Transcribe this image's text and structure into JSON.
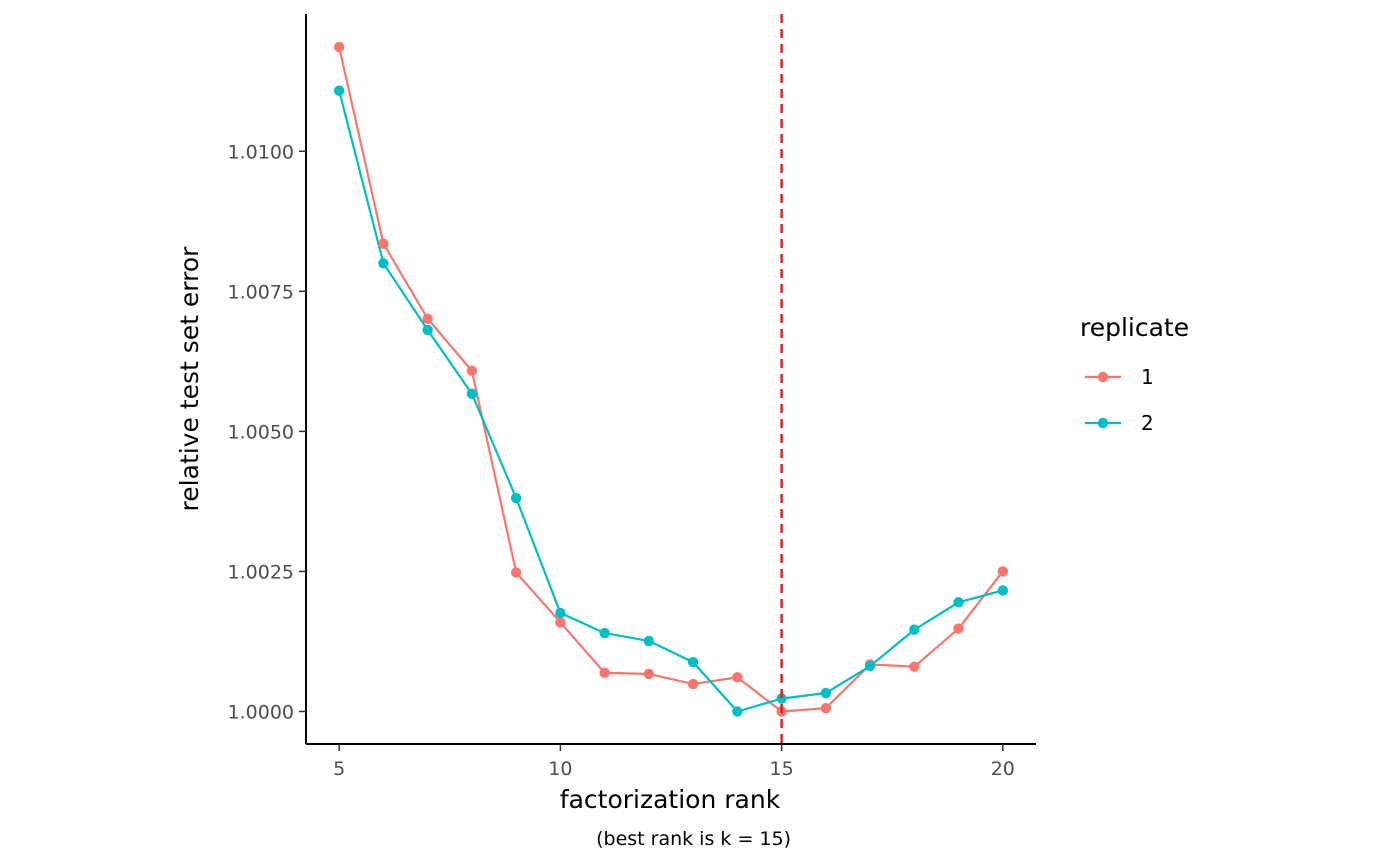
{
  "chart_data": {
    "type": "line",
    "xlabel": "factorization rank",
    "ylabel": "relative test set error",
    "caption": "(best rank is k = 15)",
    "x": [
      5,
      6,
      7,
      8,
      9,
      10,
      11,
      12,
      13,
      14,
      15,
      16,
      17,
      18,
      19,
      20
    ],
    "xlim": [
      4.25,
      20.75
    ],
    "ylim": [
      0.99942,
      1.01245
    ],
    "x_ticks": [
      5,
      10,
      15,
      20
    ],
    "x_tick_labels": [
      "5",
      "10",
      "15",
      "20"
    ],
    "y_ticks": [
      1.0,
      1.0025,
      1.005,
      1.0075,
      1.01
    ],
    "y_tick_labels": [
      "1.0000",
      "1.0025",
      "1.0050",
      "1.0075",
      "1.0100"
    ],
    "grid": false,
    "vline": {
      "x": 15,
      "color": "#e31a1c",
      "style": "dashed"
    },
    "legend": {
      "title": "replicate",
      "position": "right"
    },
    "series": [
      {
        "name": "1",
        "color": "#f8766d",
        "values": [
          1.01186,
          1.00835,
          1.00701,
          1.00608,
          1.00248,
          1.00159,
          1.00069,
          1.00067,
          1.00049,
          1.00061,
          1.0,
          1.00006,
          1.00084,
          1.0008,
          1.00148,
          1.0025
        ]
      },
      {
        "name": "2",
        "color": "#00bfc4",
        "values": [
          1.01108,
          1.008,
          1.00681,
          1.00567,
          1.00381,
          1.00176,
          1.0014,
          1.00126,
          1.00088,
          1.0,
          1.00023,
          1.00033,
          1.00081,
          1.00146,
          1.00195,
          1.00216
        ]
      }
    ]
  }
}
